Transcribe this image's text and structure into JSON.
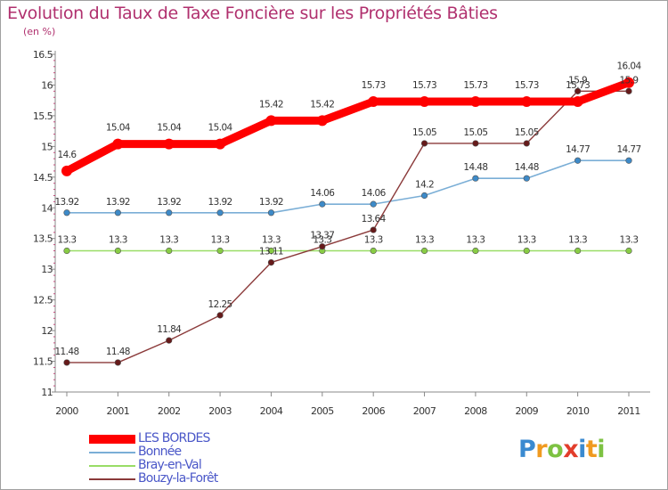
{
  "title": "Evolution du Taux de Taxe Foncière sur les Propriétés Bâties",
  "subtitle": "(en %)",
  "logo_text": "Proxiti",
  "chart_data": {
    "type": "line",
    "title": "Evolution du Taux de Taxe Foncière sur les Propriétés Bâties",
    "ylabel": "(en %)",
    "xlabel": "",
    "x": [
      "2000",
      "2001",
      "2002",
      "2003",
      "2004",
      "2005",
      "2006",
      "2007",
      "2008",
      "2009",
      "2010",
      "2011"
    ],
    "ylim": [
      11,
      16.5
    ],
    "yticks": [
      11,
      11.5,
      12,
      12.5,
      13,
      13.5,
      14,
      14.5,
      15,
      15.5,
      16,
      16.5
    ],
    "ytick_labels": [
      "11",
      "11.5",
      "12",
      "12.5",
      "13",
      "13.5",
      "14",
      "14.5",
      "15",
      "15.5",
      "16",
      "16.5"
    ],
    "grid": false,
    "legend": "bottom-left",
    "series": [
      {
        "name": "LES BORDES",
        "color": "#ff0000",
        "point_color": "#ff0000",
        "values": [
          14.6,
          15.04,
          15.04,
          15.04,
          15.42,
          15.42,
          15.73,
          15.73,
          15.73,
          15.73,
          15.73,
          16.04
        ],
        "labels": [
          "14.6",
          "15.04",
          "15.04",
          "15.04",
          "15.42",
          "15.42",
          "15.73",
          "15.73",
          "15.73",
          "15.73",
          "15.73",
          "16.04"
        ]
      },
      {
        "name": "Bonnée",
        "color": "#7aaed6",
        "point_color": "#3d8ac8",
        "values": [
          13.92,
          13.92,
          13.92,
          13.92,
          13.92,
          14.06,
          14.06,
          14.2,
          14.48,
          14.48,
          14.77,
          14.77
        ],
        "labels": [
          "13.92",
          "13.92",
          "13.92",
          "13.92",
          "13.92",
          "14.06",
          "14.06",
          "14.2",
          "14.48",
          "14.48",
          "14.77",
          "14.77"
        ]
      },
      {
        "name": "Bray-en-Val",
        "color": "#99dd66",
        "point_color": "#88cc44",
        "values": [
          13.3,
          13.3,
          13.3,
          13.3,
          13.3,
          13.3,
          13.3,
          13.3,
          13.3,
          13.3,
          13.3,
          13.3
        ],
        "labels": [
          "13.3",
          "13.3",
          "13.3",
          "13.3",
          "13.3",
          "13.3",
          "13.3",
          "13.3",
          "13.3",
          "13.3",
          "13.3",
          "13.3"
        ]
      },
      {
        "name": "Bouzy-la-Forêt",
        "color": "#8b3a3a",
        "point_color": "#661a1a",
        "values": [
          11.48,
          11.48,
          11.84,
          12.25,
          13.11,
          13.37,
          13.64,
          15.05,
          15.05,
          15.05,
          15.9,
          15.9
        ],
        "labels": [
          "11.48",
          "11.48",
          "11.84",
          "12.25",
          "13.11",
          "13.37",
          "13.64",
          "15.05",
          "15.05",
          "15.05",
          "15.9",
          "15.9"
        ]
      }
    ]
  }
}
